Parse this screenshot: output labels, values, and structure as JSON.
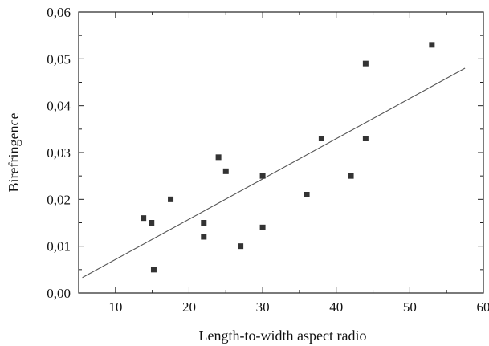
{
  "chart_data": {
    "type": "scatter",
    "xlabel": "Length-to-width aspect radio",
    "ylabel": "Birefringence",
    "xlim": [
      5,
      60
    ],
    "ylim": [
      0.0,
      0.06
    ],
    "x_ticks": [
      10,
      20,
      30,
      40,
      50,
      60
    ],
    "x_tick_labels": [
      "10",
      "20",
      "30",
      "40",
      "50",
      "60"
    ],
    "y_ticks": [
      0.0,
      0.01,
      0.02,
      0.03,
      0.04,
      0.05,
      0.06
    ],
    "y_tick_labels": [
      "0,00",
      "0,01",
      "0,02",
      "0,03",
      "0,04",
      "0,05",
      "0,06"
    ],
    "grid": false,
    "marker": "square",
    "points": [
      {
        "x": 13.8,
        "y": 0.016
      },
      {
        "x": 14.9,
        "y": 0.015
      },
      {
        "x": 15.2,
        "y": 0.005
      },
      {
        "x": 17.5,
        "y": 0.02
      },
      {
        "x": 22.0,
        "y": 0.015
      },
      {
        "x": 22.0,
        "y": 0.012
      },
      {
        "x": 24.0,
        "y": 0.029
      },
      {
        "x": 25.0,
        "y": 0.026
      },
      {
        "x": 27.0,
        "y": 0.01
      },
      {
        "x": 30.0,
        "y": 0.025
      },
      {
        "x": 30.0,
        "y": 0.014
      },
      {
        "x": 36.0,
        "y": 0.021
      },
      {
        "x": 38.0,
        "y": 0.033
      },
      {
        "x": 42.0,
        "y": 0.025
      },
      {
        "x": 44.0,
        "y": 0.049
      },
      {
        "x": 44.0,
        "y": 0.033
      },
      {
        "x": 53.0,
        "y": 0.053
      }
    ],
    "fit_line": {
      "x": [
        5.5,
        57.5
      ],
      "y": [
        0.0033,
        0.048
      ]
    },
    "colors": {
      "marker": "#333333",
      "line": "#555555",
      "axis": "#222222"
    }
  }
}
